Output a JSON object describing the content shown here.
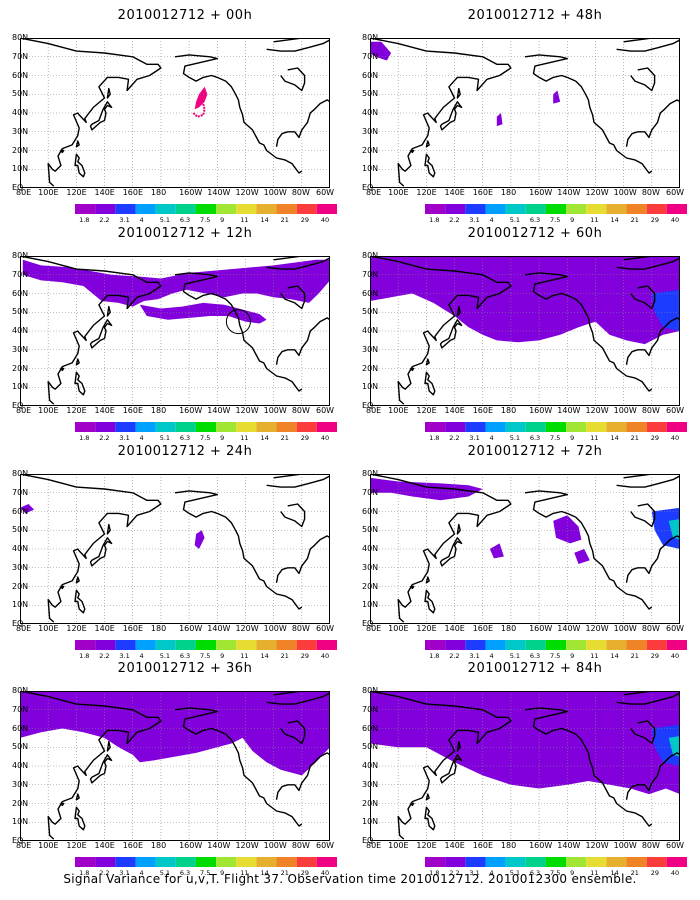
{
  "panels": [
    {
      "title": "2010012712 + 00h",
      "level": 0
    },
    {
      "title": "2010012712 + 48h",
      "level": 4
    },
    {
      "title": "2010012712 + 12h",
      "level": 1
    },
    {
      "title": "2010012712 + 60h",
      "level": 5
    },
    {
      "title": "2010012712 + 24h",
      "level": 2
    },
    {
      "title": "2010012712 + 72h",
      "level": 6
    },
    {
      "title": "2010012712 + 36h",
      "level": 3
    },
    {
      "title": "2010012712 + 84h",
      "level": 7
    }
  ],
  "lat_labels": [
    "80N",
    "70N",
    "60N",
    "50N",
    "40N",
    "30N",
    "20N",
    "10N",
    "EQ"
  ],
  "lon_labels": [
    "80E",
    "100E",
    "120E",
    "140E",
    "160E",
    "180",
    "160W",
    "140W",
    "120W",
    "100W",
    "80W",
    "60W"
  ],
  "colorbar": {
    "labels": [
      "1.8",
      "2.2",
      "3.1",
      "4",
      "5.1",
      "6.3",
      "7.5",
      "9",
      "11",
      "14",
      "21",
      "29",
      "40"
    ],
    "colors": [
      "#a000c8",
      "#8200dc",
      "#1e3cff",
      "#00a0ff",
      "#00c8c8",
      "#00d28c",
      "#00dc00",
      "#a0e632",
      "#e6dc32",
      "#e6af2d",
      "#f08228",
      "#fa3c3c",
      "#f00082"
    ]
  },
  "caption": "Signal Variance for u,v,T. Flight 37. Observation time 2010012712. 2010012300 ensemble."
}
